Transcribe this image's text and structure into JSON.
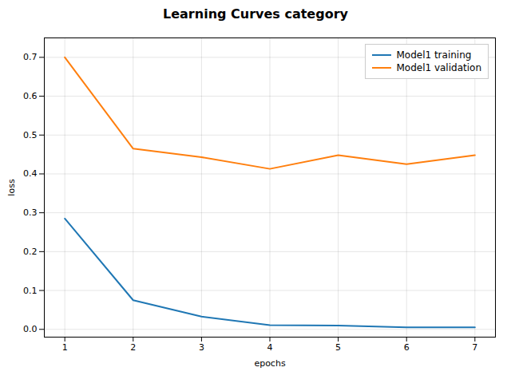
{
  "chart_data": {
    "type": "line",
    "title": "Learning Curves category",
    "xlabel": "epochs",
    "ylabel": "loss",
    "x": [
      1,
      2,
      3,
      4,
      5,
      6,
      7
    ],
    "series": [
      {
        "name": "Model1 training",
        "color": "#1f77b4",
        "values": [
          0.285,
          0.075,
          0.033,
          0.011,
          0.01,
          0.005,
          0.005
        ]
      },
      {
        "name": "Model1 validation",
        "color": "#ff7f0e",
        "values": [
          0.7,
          0.465,
          0.443,
          0.413,
          0.448,
          0.425,
          0.448
        ]
      }
    ],
    "xlim": [
      0.7,
      7.3
    ],
    "ylim": [
      -0.02,
      0.75
    ],
    "xticks": [
      1,
      2,
      3,
      4,
      5,
      6,
      7
    ],
    "yticks": [
      {
        "value": 0,
        "label": "0.0"
      },
      0.1,
      0.2,
      0.3,
      0.4,
      0.5,
      0.6,
      0.7
    ],
    "grid": true,
    "legend": "upper right"
  }
}
